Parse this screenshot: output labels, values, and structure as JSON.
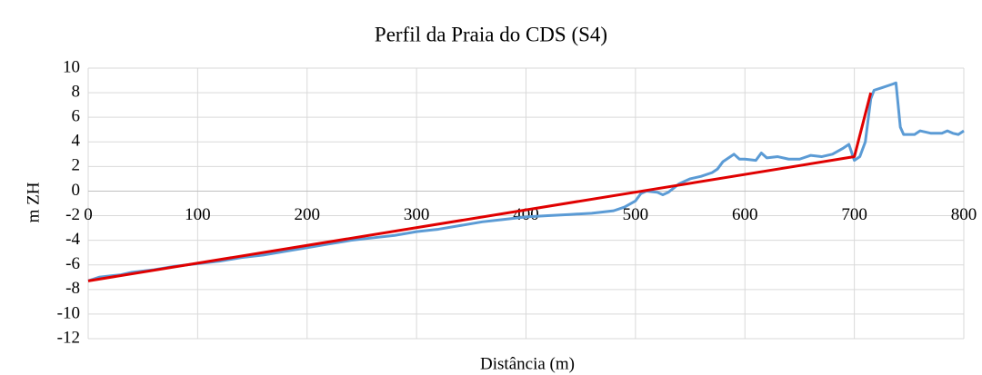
{
  "chart_data": {
    "type": "line",
    "title": "Perfil da Praia do CDS (S4)",
    "xlabel": "Distância (m)",
    "ylabel": "m ZH",
    "series": [
      {
        "color": "#5b9bd5",
        "x": [
          0,
          10,
          20,
          30,
          40,
          50,
          60,
          80,
          100,
          120,
          140,
          160,
          180,
          200,
          220,
          240,
          260,
          280,
          300,
          320,
          340,
          360,
          380,
          400,
          420,
          440,
          460,
          480,
          490,
          500,
          505,
          510,
          520,
          525,
          530,
          540,
          550,
          560,
          570,
          575,
          580,
          590,
          595,
          600,
          610,
          615,
          620,
          630,
          640,
          650,
          660,
          670,
          680,
          690,
          695,
          700,
          705,
          710,
          715,
          718,
          725,
          735,
          738,
          742,
          745,
          755,
          760,
          770,
          780,
          785,
          790,
          795,
          800
        ],
        "values": [
          -7.3,
          -7.0,
          -6.9,
          -6.8,
          -6.6,
          -6.5,
          -6.4,
          -6.1,
          -5.9,
          -5.7,
          -5.4,
          -5.2,
          -4.9,
          -4.6,
          -4.3,
          -4.0,
          -3.8,
          -3.6,
          -3.3,
          -3.1,
          -2.8,
          -2.5,
          -2.3,
          -2.1,
          -2.0,
          -1.9,
          -1.8,
          -1.6,
          -1.3,
          -0.8,
          -0.2,
          0,
          -0.1,
          -0.3,
          -0.1,
          0.6,
          1.0,
          1.2,
          1.5,
          1.8,
          2.4,
          3.0,
          2.6,
          2.6,
          2.5,
          3.1,
          2.7,
          2.8,
          2.6,
          2.6,
          2.9,
          2.8,
          3.0,
          3.5,
          3.8,
          2.5,
          2.8,
          4.0,
          7.5,
          8.2,
          8.4,
          8.7,
          8.8,
          5.2,
          4.6,
          4.6,
          4.9,
          4.7,
          4.7,
          4.9,
          4.7,
          4.6,
          4.9
        ]
      },
      {
        "color": "#e00000",
        "x": [
          0,
          700,
          715
        ],
        "values": [
          -7.3,
          2.8,
          8.0
        ]
      }
    ],
    "xlim": [
      0,
      800
    ],
    "xticks": [
      0,
      100,
      200,
      300,
      400,
      500,
      600,
      700,
      800
    ],
    "ylim": [
      -12,
      10
    ],
    "yticks": [
      -12,
      -10,
      -8,
      -6,
      -4,
      -2,
      0,
      2,
      4,
      6,
      8,
      10
    ],
    "grid": true
  }
}
